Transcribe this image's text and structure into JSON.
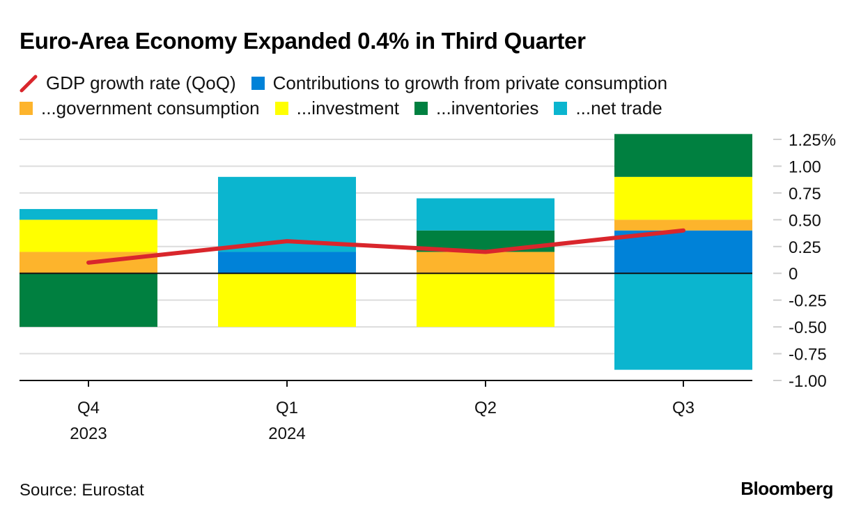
{
  "header": {
    "title": "Euro-Area Economy Expanded 0.4% in Third Quarter"
  },
  "legend": {
    "row1": [
      {
        "label": "GDP growth rate (QoQ)",
        "key": "gdp",
        "kind": "line",
        "color": "#d9262c"
      },
      {
        "label": "Contributions to growth from private consumption",
        "key": "private",
        "kind": "box",
        "color": "#0082d8"
      }
    ],
    "row2": [
      {
        "label": "...government consumption",
        "key": "government",
        "kind": "box",
        "color": "#fdb42c"
      },
      {
        "label": "...investment",
        "key": "investment",
        "kind": "box",
        "color": "#ffff00"
      },
      {
        "label": "...inventories",
        "key": "inventories",
        "kind": "box",
        "color": "#008040"
      },
      {
        "label": "...net trade",
        "key": "net_trade",
        "kind": "box",
        "color": "#0bb5cf"
      }
    ]
  },
  "footer": {
    "source": "Source: Eurostat",
    "brand": "Bloomberg"
  },
  "chart_data": {
    "type": "bar",
    "stacked": true,
    "title": "Euro-Area Economy Expanded 0.4% in Third Quarter",
    "xlabel": "",
    "ylabel": "",
    "categories": [
      "Q4 2023",
      "Q1 2024",
      "Q2",
      "Q3"
    ],
    "category_labels": [
      [
        "Q4",
        "2023"
      ],
      [
        "Q1",
        "2024"
      ],
      [
        "Q2",
        ""
      ],
      [
        "Q3",
        ""
      ]
    ],
    "ylim": [
      -1.0,
      1.25
    ],
    "yticks": [
      1.25,
      1.0,
      0.75,
      0.5,
      0.25,
      0,
      -0.25,
      -0.5,
      -0.75,
      -1.0
    ],
    "ytick_labels": [
      "1.25%",
      "1.00",
      "0.75",
      "0.50",
      "0.25",
      "0",
      "-0.25",
      "-0.50",
      "-0.75",
      "-1.00"
    ],
    "y_axis_side": "right",
    "grid": true,
    "legend_position": "top",
    "series": [
      {
        "name": "Contributions to growth from private consumption",
        "key": "private",
        "color": "#0082d8",
        "values": [
          0.0,
          0.2,
          0.0,
          0.4
        ]
      },
      {
        "name": "...government consumption",
        "key": "government",
        "color": "#fdb42c",
        "values": [
          0.2,
          0.0,
          0.2,
          0.1
        ]
      },
      {
        "name": "...investment",
        "key": "investment",
        "color": "#ffff00",
        "values": [
          0.3,
          -0.5,
          -0.5,
          0.4
        ]
      },
      {
        "name": "...inventories",
        "key": "inventories",
        "color": "#008040",
        "values": [
          -0.5,
          0.0,
          0.2,
          0.4
        ]
      },
      {
        "name": "...net trade",
        "key": "net_trade",
        "color": "#0bb5cf",
        "values": [
          0.1,
          0.7,
          0.3,
          -0.9
        ]
      }
    ],
    "line_series": {
      "name": "GDP growth rate (QoQ)",
      "key": "gdp",
      "color": "#d9262c",
      "values": [
        0.1,
        0.3,
        0.2,
        0.4
      ]
    }
  }
}
